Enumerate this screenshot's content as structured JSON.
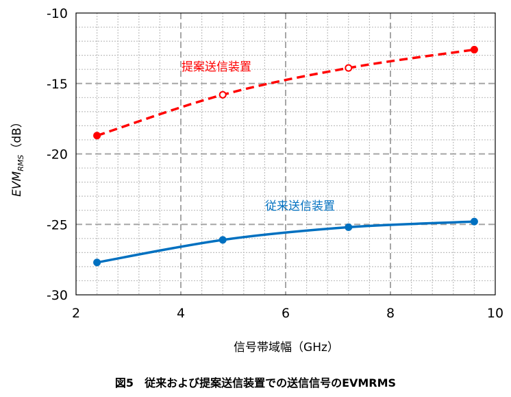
{
  "chart_data": {
    "type": "line",
    "xlabel": "信号帯域幅（GHz）",
    "ylabel_main": "EVM",
    "ylabel_sub": "RMS",
    "ylabel_unit": "（dB）",
    "xlim": [
      2,
      10
    ],
    "ylim": [
      -30,
      -10
    ],
    "x_ticks": [
      2,
      4,
      6,
      8,
      10
    ],
    "y_ticks": [
      -10,
      -15,
      -20,
      -25,
      -30
    ],
    "x_tick_labels": [
      "2",
      "4",
      "6",
      "8",
      "10"
    ],
    "y_tick_labels": [
      "-10",
      "-15",
      "-20",
      "-25",
      "-30"
    ],
    "grid": true,
    "series": [
      {
        "name": "提案送信装置",
        "color": "#ff0000",
        "line_style": "dashed",
        "marker": "open-circle",
        "x": [
          2.4,
          4.8,
          7.2,
          9.6
        ],
        "y": [
          -18.7,
          -15.8,
          -13.9,
          -12.6
        ]
      },
      {
        "name": "従来送信装置",
        "color": "#0070c0",
        "line_style": "solid",
        "marker": "filled-circle",
        "x": [
          2.4,
          4.8,
          7.2,
          9.6
        ],
        "y": [
          -27.7,
          -26.1,
          -25.2,
          -24.8
        ]
      }
    ]
  },
  "caption": {
    "number": "図5",
    "text": "従来および提案送信装置での送信信号のEVMRMS"
  }
}
